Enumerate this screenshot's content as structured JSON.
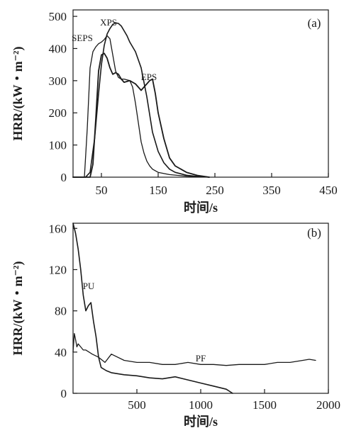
{
  "colors": {
    "ink": "#1a1a1a",
    "background": "#ffffff"
  },
  "chart_data": [
    {
      "type": "line",
      "panel_label": "(a)",
      "xlabel": "时间/s",
      "ylabel": "HRR/(kW・m⁻²)",
      "xlim": [
        0,
        450
      ],
      "ylim": [
        0,
        520
      ],
      "xticks": [
        50,
        150,
        250,
        350,
        450
      ],
      "yticks": [
        0,
        100,
        200,
        300,
        400,
        500
      ],
      "series": [
        {
          "name": "XPS",
          "color": "#1a1a1a",
          "x": [
            0,
            22,
            30,
            38,
            45,
            50,
            55,
            60,
            65,
            70,
            75,
            80,
            85,
            90,
            95,
            100,
            110,
            120,
            130,
            140,
            150,
            160,
            170,
            180,
            200,
            220,
            240
          ],
          "y": [
            0,
            0,
            15,
            120,
            260,
            350,
            410,
            445,
            462,
            475,
            480,
            478,
            470,
            455,
            440,
            420,
            390,
            340,
            250,
            140,
            80,
            45,
            25,
            15,
            6,
            2,
            0
          ]
        },
        {
          "name": "SEPS",
          "color": "#1a1a1a",
          "x": [
            0,
            20,
            25,
            30,
            35,
            40,
            45,
            50,
            55,
            60,
            65,
            70,
            75,
            80,
            85,
            90,
            100,
            105,
            110,
            115,
            120,
            125,
            130,
            135,
            140,
            150,
            170,
            200,
            240
          ],
          "y": [
            0,
            0,
            150,
            340,
            390,
            405,
            415,
            420,
            428,
            440,
            430,
            380,
            330,
            310,
            305,
            305,
            300,
            280,
            230,
            170,
            110,
            75,
            50,
            35,
            25,
            15,
            8,
            3,
            0
          ]
        },
        {
          "name": "EPS",
          "color": "#1a1a1a",
          "x": [
            0,
            30,
            35,
            40,
            45,
            50,
            55,
            60,
            65,
            70,
            75,
            80,
            85,
            90,
            100,
            110,
            115,
            120,
            125,
            130,
            135,
            140,
            145,
            150,
            160,
            170,
            180,
            200,
            220,
            240
          ],
          "y": [
            0,
            0,
            40,
            180,
            330,
            380,
            385,
            370,
            340,
            320,
            325,
            320,
            305,
            295,
            300,
            290,
            280,
            270,
            280,
            290,
            300,
            305,
            260,
            200,
            120,
            60,
            35,
            15,
            5,
            0
          ]
        }
      ],
      "annotations": [
        {
          "text": "XPS",
          "x": 70,
          "y": 495
        },
        {
          "text": "SEPS",
          "x": 16,
          "y": 448
        },
        {
          "text": "EPS",
          "x": 133,
          "y": 318
        }
      ]
    },
    {
      "type": "line",
      "panel_label": "(b)",
      "xlabel": "时间/s",
      "ylabel": "HRR/(kW・m⁻²)",
      "xlim": [
        0,
        2000
      ],
      "ylim": [
        0,
        165
      ],
      "xticks": [
        500,
        1000,
        1500,
        2000
      ],
      "yticks": [
        0,
        40,
        80,
        120,
        160
      ],
      "series": [
        {
          "name": "PU",
          "color": "#1a1a1a",
          "x": [
            0,
            20,
            40,
            60,
            80,
            100,
            120,
            140,
            160,
            180,
            200,
            220,
            260,
            300,
            400,
            500,
            600,
            700,
            800,
            900,
            1000,
            1100,
            1200,
            1250
          ],
          "y": [
            165,
            155,
            140,
            120,
            95,
            80,
            85,
            88,
            70,
            55,
            35,
            25,
            22,
            20,
            18,
            17,
            15,
            14,
            16,
            13,
            10,
            7,
            4,
            0
          ]
        },
        {
          "name": "PF",
          "color": "#1a1a1a",
          "x": [
            0,
            10,
            20,
            30,
            40,
            60,
            80,
            100,
            150,
            200,
            250,
            300,
            400,
            500,
            600,
            700,
            800,
            900,
            1000,
            1100,
            1200,
            1300,
            1400,
            1500,
            1600,
            1700,
            1800,
            1850,
            1900
          ],
          "y": [
            40,
            58,
            52,
            45,
            48,
            45,
            42,
            42,
            38,
            35,
            30,
            38,
            32,
            30,
            30,
            28,
            28,
            30,
            28,
            28,
            27,
            28,
            28,
            28,
            30,
            30,
            32,
            33,
            32
          ]
        }
      ],
      "annotations": [
        {
          "text": "PU",
          "x": 100,
          "y": 105
        },
        {
          "text": "PF",
          "x": 1020,
          "y": 35
        }
      ]
    }
  ]
}
